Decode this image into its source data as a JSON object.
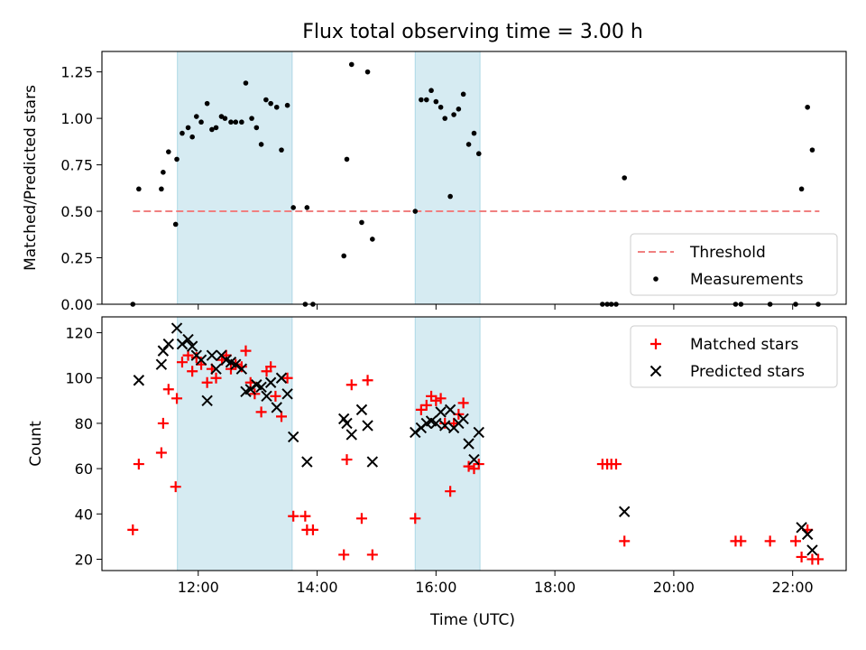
{
  "figure": {
    "title": "Flux total observing time = 3.00 h",
    "xlabel": "Time (UTC)",
    "x_tick_labels": [
      "12:00",
      "14:00",
      "16:00",
      "18:00",
      "20:00",
      "22:00"
    ]
  },
  "colors": {
    "threshold": "#f08080",
    "measurements": "#000000",
    "matched": "#ff0000",
    "predicted": "#000000",
    "shade_fill": "#add8e6",
    "shade_edge": "#add8e6"
  },
  "chart_data": [
    {
      "type": "scatter",
      "ylabel": "Matched/Predicted stars",
      "xlim": [
        10.38,
        22.9
      ],
      "ylim": [
        0,
        1.36
      ],
      "y_ticks": [
        0.0,
        0.25,
        0.5,
        0.75,
        1.0,
        1.25
      ],
      "y_tick_labels": [
        "0.00",
        "0.25",
        "0.50",
        "0.75",
        "1.00",
        "1.25"
      ],
      "x_ticks": [
        12,
        14,
        16,
        18,
        20,
        22
      ],
      "shaded_regions": [
        [
          11.65,
          13.58
        ],
        [
          15.65,
          16.74
        ]
      ],
      "legend": {
        "location": "lower right",
        "entries": [
          "Threshold",
          "Measurements"
        ]
      },
      "threshold": {
        "name": "Threshold",
        "y": 0.5,
        "x_range": [
          10.9,
          22.45
        ]
      },
      "series": [
        {
          "name": "Measurements",
          "points": [
            [
              10.9,
              0.0
            ],
            [
              11.0,
              0.62
            ],
            [
              11.38,
              0.62
            ],
            [
              11.41,
              0.71
            ],
            [
              11.5,
              0.82
            ],
            [
              11.62,
              0.43
            ],
            [
              11.64,
              0.78
            ],
            [
              11.73,
              0.92
            ],
            [
              11.83,
              0.95
            ],
            [
              11.9,
              0.9
            ],
            [
              11.97,
              1.01
            ],
            [
              12.05,
              0.98
            ],
            [
              12.15,
              1.08
            ],
            [
              12.23,
              0.94
            ],
            [
              12.3,
              0.95
            ],
            [
              12.39,
              1.01
            ],
            [
              12.45,
              1.0
            ],
            [
              12.55,
              0.98
            ],
            [
              12.63,
              0.98
            ],
            [
              12.73,
              0.98
            ],
            [
              12.8,
              1.19
            ],
            [
              12.9,
              1.0
            ],
            [
              12.98,
              0.95
            ],
            [
              13.06,
              0.86
            ],
            [
              13.14,
              1.1
            ],
            [
              13.22,
              1.08
            ],
            [
              13.32,
              1.06
            ],
            [
              13.4,
              0.83
            ],
            [
              13.5,
              1.07
            ],
            [
              13.6,
              0.52
            ],
            [
              13.8,
              0.0
            ],
            [
              13.83,
              0.52
            ],
            [
              13.93,
              0.0
            ],
            [
              14.45,
              0.26
            ],
            [
              14.5,
              0.78
            ],
            [
              14.58,
              1.29
            ],
            [
              14.75,
              0.44
            ],
            [
              14.85,
              1.25
            ],
            [
              14.93,
              0.35
            ],
            [
              15.65,
              0.5
            ],
            [
              15.75,
              1.1
            ],
            [
              15.84,
              1.1
            ],
            [
              15.92,
              1.15
            ],
            [
              16.0,
              1.09
            ],
            [
              16.08,
              1.06
            ],
            [
              16.15,
              1.0
            ],
            [
              16.24,
              0.58
            ],
            [
              16.3,
              1.02
            ],
            [
              16.38,
              1.05
            ],
            [
              16.46,
              1.13
            ],
            [
              16.55,
              0.86
            ],
            [
              16.64,
              0.92
            ],
            [
              16.72,
              0.81
            ],
            [
              18.8,
              0.0
            ],
            [
              18.88,
              0.0
            ],
            [
              18.95,
              0.0
            ],
            [
              19.03,
              0.0
            ],
            [
              19.17,
              0.68
            ],
            [
              21.04,
              0.0
            ],
            [
              21.13,
              0.0
            ],
            [
              21.62,
              0.0
            ],
            [
              22.05,
              0.0
            ],
            [
              22.15,
              0.62
            ],
            [
              22.25,
              1.06
            ],
            [
              22.33,
              0.83
            ],
            [
              22.43,
              0.0
            ]
          ]
        }
      ]
    },
    {
      "type": "scatter",
      "ylabel": "Count",
      "xlim": [
        10.38,
        22.9
      ],
      "ylim": [
        15,
        127
      ],
      "y_ticks": [
        20,
        40,
        60,
        80,
        100,
        120
      ],
      "y_tick_labels": [
        "20",
        "40",
        "60",
        "80",
        "100",
        "120"
      ],
      "x_ticks": [
        12,
        14,
        16,
        18,
        20,
        22
      ],
      "shaded_regions": [
        [
          11.65,
          13.58
        ],
        [
          15.65,
          16.74
        ]
      ],
      "legend": {
        "location": "upper right",
        "entries": [
          "Matched stars",
          "Predicted stars"
        ]
      },
      "series": [
        {
          "name": "Matched stars",
          "marker": "plus",
          "points": [
            [
              10.9,
              33
            ],
            [
              11.0,
              62
            ],
            [
              11.38,
              67
            ],
            [
              11.41,
              80
            ],
            [
              11.5,
              95
            ],
            [
              11.64,
              91
            ],
            [
              11.62,
              52
            ],
            [
              11.73,
              107
            ],
            [
              11.83,
              110
            ],
            [
              11.9,
              103
            ],
            [
              11.97,
              109
            ],
            [
              12.05,
              106
            ],
            [
              12.15,
              98
            ],
            [
              12.23,
              104
            ],
            [
              12.3,
              100
            ],
            [
              12.4,
              108
            ],
            [
              12.47,
              110
            ],
            [
              12.55,
              104
            ],
            [
              12.63,
              106
            ],
            [
              12.73,
              105
            ],
            [
              12.8,
              112
            ],
            [
              12.88,
              98
            ],
            [
              12.95,
              93
            ],
            [
              13.06,
              85
            ],
            [
              13.15,
              103
            ],
            [
              13.22,
              105
            ],
            [
              13.3,
              92
            ],
            [
              13.4,
              83
            ],
            [
              13.5,
              100
            ],
            [
              13.6,
              39
            ],
            [
              13.8,
              39
            ],
            [
              13.83,
              33
            ],
            [
              13.93,
              33
            ],
            [
              14.45,
              22
            ],
            [
              14.5,
              64
            ],
            [
              14.58,
              97
            ],
            [
              14.75,
              38
            ],
            [
              14.85,
              99
            ],
            [
              14.93,
              22
            ],
            [
              15.65,
              38
            ],
            [
              15.75,
              86
            ],
            [
              15.84,
              88
            ],
            [
              15.92,
              92
            ],
            [
              16.0,
              90
            ],
            [
              16.08,
              91
            ],
            [
              16.15,
              80
            ],
            [
              16.24,
              50
            ],
            [
              16.3,
              80
            ],
            [
              16.38,
              84
            ],
            [
              16.46,
              89
            ],
            [
              16.55,
              61
            ],
            [
              16.64,
              60
            ],
            [
              16.72,
              62
            ],
            [
              18.8,
              62
            ],
            [
              18.88,
              62
            ],
            [
              18.95,
              62
            ],
            [
              19.03,
              62
            ],
            [
              19.17,
              28
            ],
            [
              21.04,
              28
            ],
            [
              21.13,
              28
            ],
            [
              21.62,
              28
            ],
            [
              22.05,
              28
            ],
            [
              22.15,
              21
            ],
            [
              22.25,
              33
            ],
            [
              22.33,
              20
            ],
            [
              22.43,
              20
            ]
          ]
        },
        {
          "name": "Predicted stars",
          "marker": "x",
          "points": [
            [
              11.0,
              99
            ],
            [
              11.38,
              106
            ],
            [
              11.41,
              112
            ],
            [
              11.5,
              115
            ],
            [
              11.64,
              122
            ],
            [
              11.73,
              115
            ],
            [
              11.83,
              117
            ],
            [
              11.9,
              114
            ],
            [
              11.97,
              110
            ],
            [
              12.05,
              108
            ],
            [
              12.15,
              90
            ],
            [
              12.23,
              110
            ],
            [
              12.3,
              104
            ],
            [
              12.39,
              110
            ],
            [
              12.47,
              108
            ],
            [
              12.55,
              107
            ],
            [
              12.63,
              106
            ],
            [
              12.73,
              104
            ],
            [
              12.8,
              94
            ],
            [
              12.88,
              95
            ],
            [
              12.98,
              97
            ],
            [
              13.06,
              96
            ],
            [
              13.15,
              92
            ],
            [
              13.22,
              98
            ],
            [
              13.32,
              87
            ],
            [
              13.4,
              100
            ],
            [
              13.5,
              93
            ],
            [
              13.6,
              74
            ],
            [
              13.83,
              63
            ],
            [
              14.45,
              82
            ],
            [
              14.5,
              80
            ],
            [
              14.58,
              75
            ],
            [
              14.75,
              86
            ],
            [
              14.85,
              79
            ],
            [
              14.93,
              63
            ],
            [
              15.65,
              76
            ],
            [
              15.75,
              78
            ],
            [
              15.84,
              80
            ],
            [
              15.92,
              81
            ],
            [
              16.0,
              80
            ],
            [
              16.08,
              85
            ],
            [
              16.15,
              79
            ],
            [
              16.24,
              86
            ],
            [
              16.3,
              78
            ],
            [
              16.38,
              80
            ],
            [
              16.46,
              82
            ],
            [
              16.55,
              71
            ],
            [
              16.64,
              64
            ],
            [
              16.72,
              76
            ],
            [
              19.17,
              41
            ],
            [
              22.15,
              34
            ],
            [
              22.25,
              31
            ],
            [
              22.33,
              24
            ]
          ]
        }
      ]
    }
  ]
}
